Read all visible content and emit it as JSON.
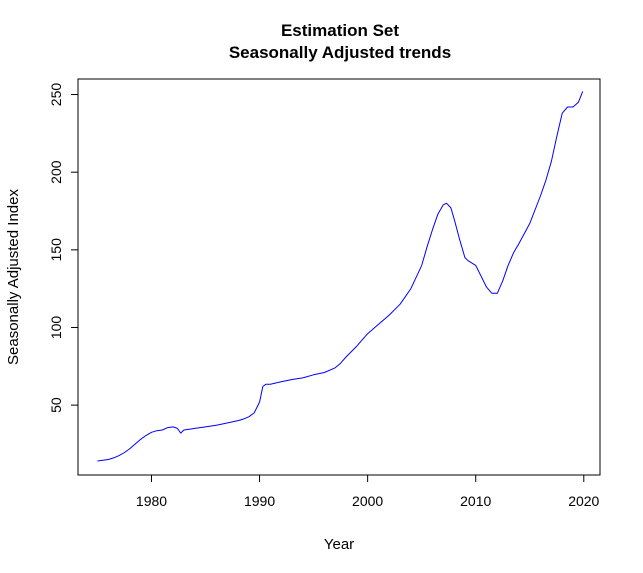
{
  "chart_data": {
    "type": "line",
    "title": "Estimation Set",
    "subtitle": "Seasonally Adjusted trends",
    "xlabel": "Year",
    "ylabel": "Seasonally Adjusted Index",
    "xlim": [
      1973.2,
      2021.5
    ],
    "ylim": [
      5,
      260
    ],
    "xticks": [
      1980,
      1990,
      2000,
      2010,
      2020
    ],
    "yticks": [
      50,
      100,
      150,
      200,
      250
    ],
    "grid": false,
    "line_color": "#0000ff",
    "series": [
      {
        "x": [
          1975.0,
          1975.5,
          1976.0,
          1976.5,
          1977.0,
          1977.5,
          1978.0,
          1978.5,
          1979.0,
          1979.5,
          1980.0,
          1980.5,
          1981.0,
          1981.5,
          1982.0,
          1982.4,
          1982.7,
          1983.0,
          1983.5,
          1984.0,
          1985.0,
          1986.0,
          1987.0,
          1988.0,
          1988.5,
          1989.0,
          1989.5,
          1990.0,
          1990.3,
          1990.6,
          1991.0,
          1992.0,
          1993.0,
          1994.0,
          1995.0,
          1996.0,
          1997.0,
          1997.5,
          1998.0,
          1999.0,
          2000.0,
          2001.0,
          2002.0,
          2003.0,
          2004.0,
          2005.0,
          2005.5,
          2006.0,
          2006.5,
          2007.0,
          2007.3,
          2007.7,
          2008.0,
          2008.5,
          2009.0,
          2009.3,
          2010.0,
          2010.5,
          2011.0,
          2011.5,
          2012.0,
          2012.5,
          2013.0,
          2013.5,
          2014.0,
          2015.0,
          2016.0,
          2016.5,
          2017.0,
          2017.5,
          2018.0,
          2018.5,
          2019.0,
          2019.5,
          2019.9
        ],
        "values": [
          14,
          14.5,
          15,
          16,
          17.5,
          19.5,
          22,
          25,
          28,
          30.5,
          32.5,
          33.5,
          34,
          35.5,
          36,
          35,
          32,
          34,
          34.5,
          35,
          36,
          37,
          38.5,
          40,
          41,
          42.5,
          45,
          52,
          62,
          63.5,
          63.5,
          65,
          66.5,
          67.5,
          69.5,
          71,
          74,
          77,
          81,
          88,
          96,
          102,
          108,
          115,
          125,
          140,
          152,
          163,
          173,
          179,
          180,
          177,
          170,
          157,
          145,
          143,
          140,
          133,
          126,
          122,
          122,
          130,
          140,
          148,
          154,
          167,
          185,
          195,
          207,
          223,
          238,
          242,
          242,
          245,
          252
        ]
      }
    ]
  }
}
